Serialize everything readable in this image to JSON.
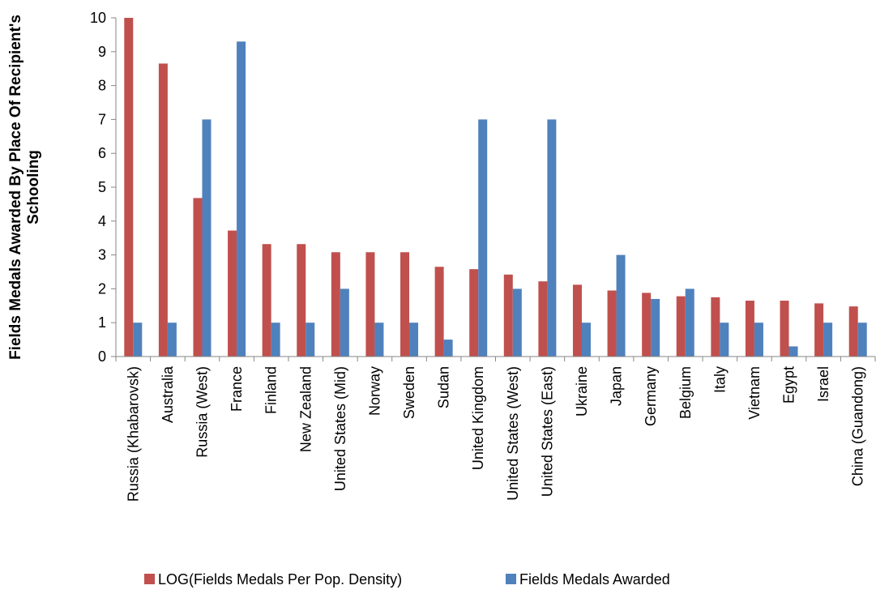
{
  "chart_data": {
    "type": "bar",
    "title": "",
    "xlabel": "",
    "ylabel": "Fields Medals Awarded By Place Of Recipient's Schooling",
    "ylim": [
      0,
      10
    ],
    "yticks": [
      "0",
      "1",
      "2",
      "3",
      "4",
      "5",
      "6",
      "7",
      "8",
      "9",
      "10"
    ],
    "grid": false,
    "legend_position": "bottom",
    "categories": [
      "Russia (Khabarovsk)",
      "Australia",
      "Russia (West)",
      "France",
      "Finland",
      "New Zealand",
      "United States (Mid)",
      "Norway",
      "Sweden",
      "Sudan",
      "United Kingdom",
      "United States (West)",
      "United States (East)",
      "Ukraine",
      "Japan",
      "Germany",
      "Belgium",
      "Italy",
      "Vietnam",
      "Egypt",
      "Israel",
      "China (Guandong)"
    ],
    "series": [
      {
        "name": "LOG(Fields Medals Per Pop. Density)",
        "color": "#c0504d",
        "values": [
          10,
          8.65,
          4.68,
          3.72,
          3.32,
          3.32,
          3.08,
          3.08,
          3.08,
          2.65,
          2.58,
          2.42,
          2.22,
          2.12,
          1.95,
          1.88,
          1.78,
          1.75,
          1.65,
          1.65,
          1.57,
          1.48
        ]
      },
      {
        "name": "Fields Medals Awarded",
        "color": "#4f81bd",
        "values": [
          1,
          1,
          7,
          9.3,
          1,
          1,
          2,
          1,
          1,
          0.5,
          7,
          2,
          7,
          1,
          3,
          1.7,
          2,
          1,
          1,
          0.3,
          1,
          1
        ]
      }
    ]
  }
}
